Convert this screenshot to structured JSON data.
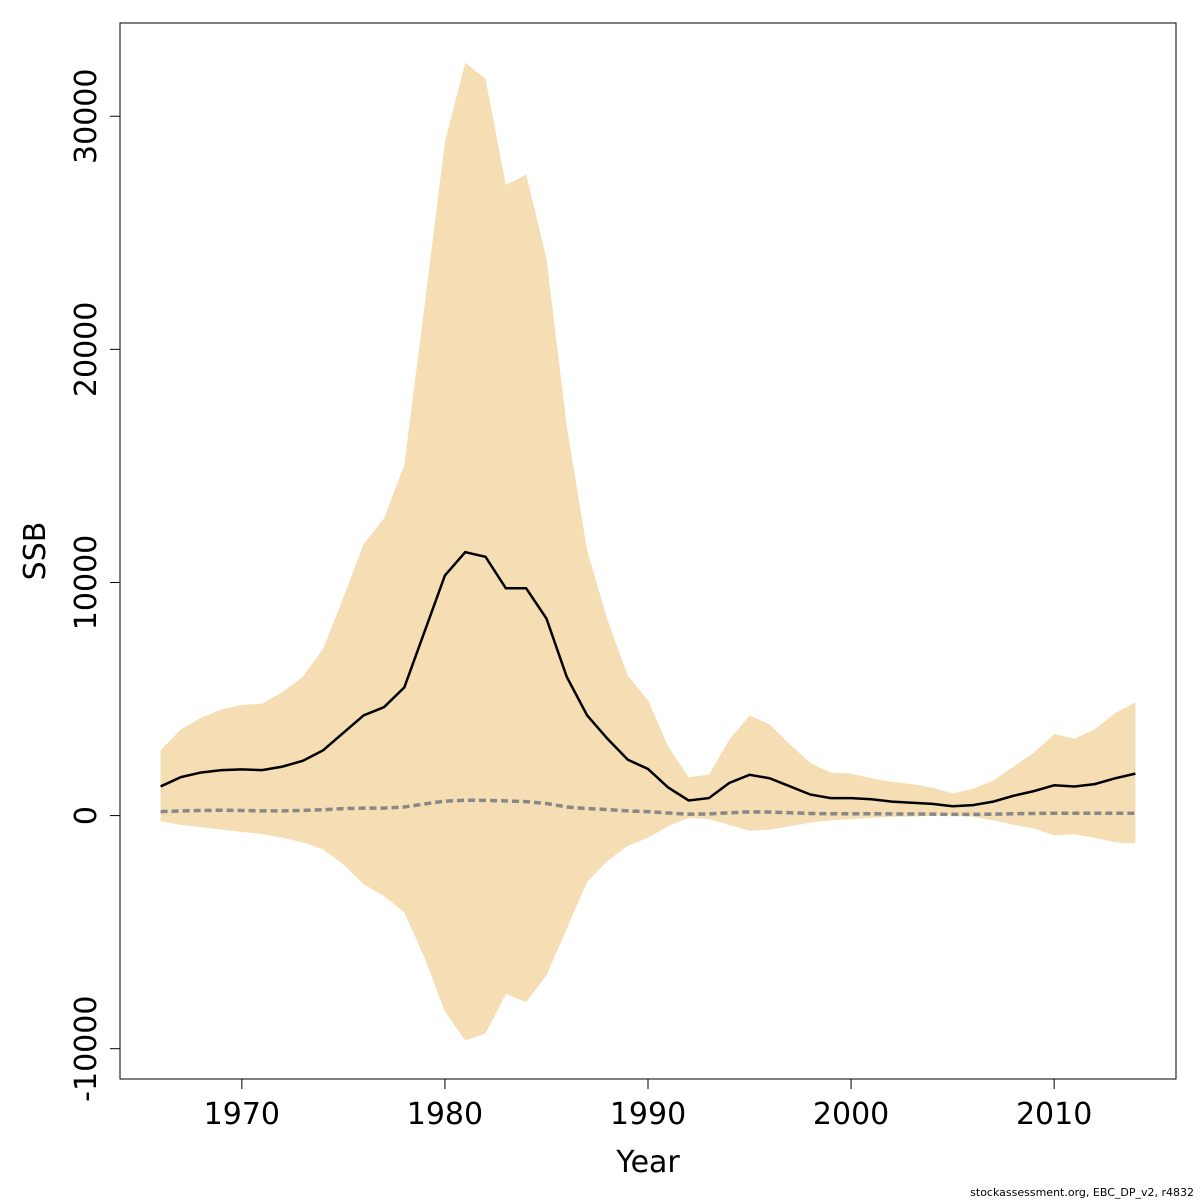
{
  "chart_data": {
    "type": "line",
    "xlabel": "Year",
    "ylabel": "SSB",
    "xlim": [
      1964,
      2016
    ],
    "ylim": [
      -11300,
      34000
    ],
    "x_ticks": [
      1970,
      1980,
      1990,
      2000,
      2010
    ],
    "y_ticks": [
      -10000,
      0,
      10000,
      20000,
      30000
    ],
    "grid": false,
    "band_color": "#F5DEB3",
    "x": [
      1966,
      1967,
      1968,
      1969,
      1970,
      1971,
      1972,
      1973,
      1974,
      1975,
      1976,
      1977,
      1978,
      1979,
      1980,
      1981,
      1982,
      1983,
      1984,
      1985,
      1986,
      1987,
      1988,
      1989,
      1990,
      1991,
      1992,
      1993,
      1994,
      1995,
      1996,
      1997,
      1998,
      1999,
      2000,
      2001,
      2002,
      2003,
      2004,
      2005,
      2006,
      2007,
      2008,
      2009,
      2010,
      2011,
      2012,
      2013,
      2014
    ],
    "series": [
      {
        "role": "band_upper",
        "color": "#F5DEB3",
        "values": [
          2800,
          3700,
          4200,
          4550,
          4750,
          4800,
          5300,
          5950,
          7150,
          9350,
          11650,
          12750,
          15050,
          21900,
          28900,
          32300,
          31600,
          27050,
          27500,
          23900,
          16700,
          11400,
          8400,
          6000,
          4950,
          2950,
          1650,
          1750,
          3250,
          4300,
          3900,
          3050,
          2250,
          1850,
          1800,
          1600,
          1450,
          1350,
          1200,
          950,
          1150,
          1500,
          2100,
          2700,
          3500,
          3300,
          3700,
          4400,
          4850
        ]
      },
      {
        "role": "band_lower",
        "color": "#F5DEB3",
        "values": [
          -250,
          -400,
          -500,
          -600,
          -700,
          -800,
          -950,
          -1150,
          -1450,
          -2100,
          -2950,
          -3450,
          -4150,
          -6100,
          -8400,
          -9650,
          -9350,
          -7650,
          -8000,
          -6850,
          -4850,
          -2850,
          -1950,
          -1300,
          -950,
          -450,
          -100,
          -150,
          -400,
          -650,
          -600,
          -450,
          -300,
          -200,
          -150,
          -100,
          -50,
          -50,
          0,
          0,
          -50,
          -200,
          -400,
          -550,
          -850,
          -800,
          -950,
          -1150,
          -1200
        ]
      },
      {
        "role": "estimate",
        "color": "#000000",
        "values": [
          1250,
          1650,
          1850,
          1950,
          1980,
          1950,
          2100,
          2350,
          2800,
          3550,
          4300,
          4650,
          5500,
          7900,
          10300,
          11300,
          11100,
          9750,
          9750,
          8450,
          5950,
          4300,
          3300,
          2400,
          2000,
          1200,
          650,
          750,
          1400,
          1750,
          1600,
          1250,
          900,
          750,
          750,
          700,
          600,
          550,
          500,
          400,
          450,
          600,
          850,
          1050,
          1300,
          1250,
          1350,
          1600,
          1800
        ]
      },
      {
        "role": "reference",
        "color": "#888888",
        "values": [
          170,
          200,
          220,
          230,
          220,
          200,
          200,
          220,
          250,
          300,
          320,
          320,
          370,
          500,
          620,
          660,
          650,
          630,
          600,
          520,
          370,
          300,
          260,
          200,
          170,
          110,
          60,
          70,
          120,
          160,
          150,
          120,
          90,
          80,
          80,
          80,
          70,
          70,
          60,
          50,
          50,
          60,
          80,
          90,
          100,
          100,
          100,
          100,
          100
        ]
      }
    ]
  },
  "footer": "stockassessment.org, EBC_DP_v2, r4832"
}
